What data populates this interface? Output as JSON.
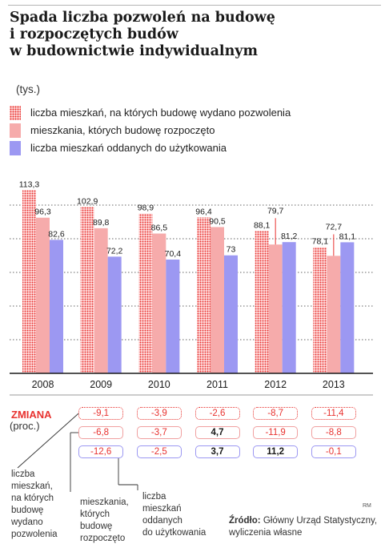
{
  "title": "Spada liczba pozwoleń na budowę\ni rozpoczętych budów\nw budownictwie indywidualnym",
  "unit": "(tys.)",
  "legend": [
    {
      "label": "liczba mieszkań, na których budowę wydano pozwolenia",
      "key": "permits"
    },
    {
      "label": "mieszkania, których budowę rozpoczęto",
      "key": "started"
    },
    {
      "label": "liczba mieszkań oddanych do użytkowania",
      "key": "finished"
    }
  ],
  "colors": {
    "permits": "#e8322f",
    "started": "#f6abab",
    "finished": "#9c98f2",
    "accent": "#e8322f"
  },
  "chart_data": {
    "type": "bar",
    "categories": [
      "2008",
      "2009",
      "2010",
      "2011",
      "2012",
      "2013"
    ],
    "series": [
      {
        "name": "liczba mieszkań, na których budowę wydano pozwolenia",
        "values": [
          113.3,
          102.9,
          98.9,
          96.4,
          88.1,
          78.1
        ],
        "labels": [
          "113,3",
          "102,9",
          "98,9",
          "96,4",
          "88,1",
          "78,1"
        ]
      },
      {
        "name": "mieszkania, których budowę rozpoczęto",
        "values": [
          96.3,
          89.8,
          86.5,
          90.5,
          79.7,
          72.7
        ],
        "labels": [
          "96,3",
          "89,8",
          "86,5",
          "90,5",
          "79,7",
          "72,7"
        ]
      },
      {
        "name": "liczba mieszkań oddanych do użytkowania",
        "values": [
          82.6,
          72.2,
          70.4,
          73,
          81.2,
          81.1
        ],
        "labels": [
          "82,6",
          "72,2",
          "70,4",
          "73",
          "81,2",
          "81,1"
        ]
      }
    ],
    "ylim": [
      0,
      115
    ],
    "grid": true
  },
  "changes": {
    "label": "ZMIANA",
    "unit": "(proc.)",
    "rows": [
      {
        "key": "permits",
        "values": [
          "-9,1",
          "-3,9",
          "-2,6",
          "-8,7",
          "-11,4"
        ]
      },
      {
        "key": "started",
        "values": [
          "-6,8",
          "-3,7",
          "4,7",
          "-11,9",
          "-8,8"
        ]
      },
      {
        "key": "finished",
        "values": [
          "-12,6",
          "-2,5",
          "3,7",
          "11,2",
          "-0,1"
        ]
      }
    ]
  },
  "callouts": {
    "permits": "liczba\nmieszkań,\nna których\nbudowę\nwydano\npozwolenia",
    "started": "mieszkania,\nktórych\nbudowę\nrozpoczęto",
    "finished": "liczba\nmieszkań\noddanych\ndo użytkowania"
  },
  "source": {
    "prefix": "Źródło:",
    "text": "Główny Urząd Statystyczny,\nwyliczenia własne"
  },
  "credit": "RM"
}
